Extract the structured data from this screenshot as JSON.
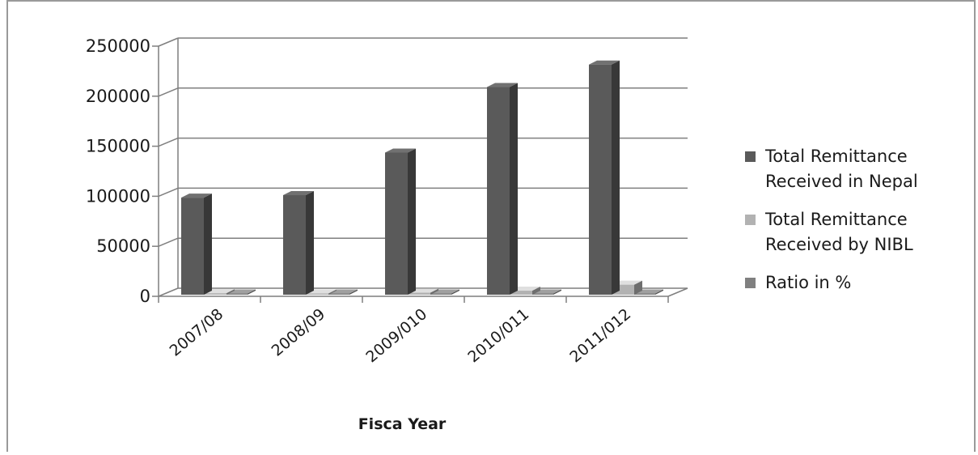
{
  "chart_data": {
    "type": "bar",
    "subtype": "3d-clustered-column",
    "title": "",
    "xlabel": "Fisca Year",
    "ylabel": "",
    "ylim": [
      0,
      250000
    ],
    "yticks": [
      "0",
      "50000",
      "100000",
      "150000",
      "200000",
      "250000"
    ],
    "categories": [
      "2007/08",
      "2008/09",
      "2009/010",
      "2010/011",
      "2011/012"
    ],
    "series": [
      {
        "name": "Total Remittance Received in Nepal",
        "legend_lines": [
          "Total Remittance",
          "Received in Nepal"
        ],
        "color": "#5a5a5a",
        "values": [
          97000,
          99500,
          142000,
          207500,
          230000
        ]
      },
      {
        "name": "Total Remittance Received by NIBL",
        "legend_lines": [
          "Total Remittance",
          "Received  by NIBL"
        ],
        "color": "#b2b2b2",
        "values": [
          1500,
          1200,
          2000,
          4000,
          10000
        ]
      },
      {
        "name": "Ratio in %",
        "legend_lines": [
          "Ratio in %"
        ],
        "color": "#808080",
        "values": [
          2,
          1.5,
          1.5,
          2,
          4
        ]
      }
    ],
    "grid": true,
    "legend_position": "right"
  }
}
